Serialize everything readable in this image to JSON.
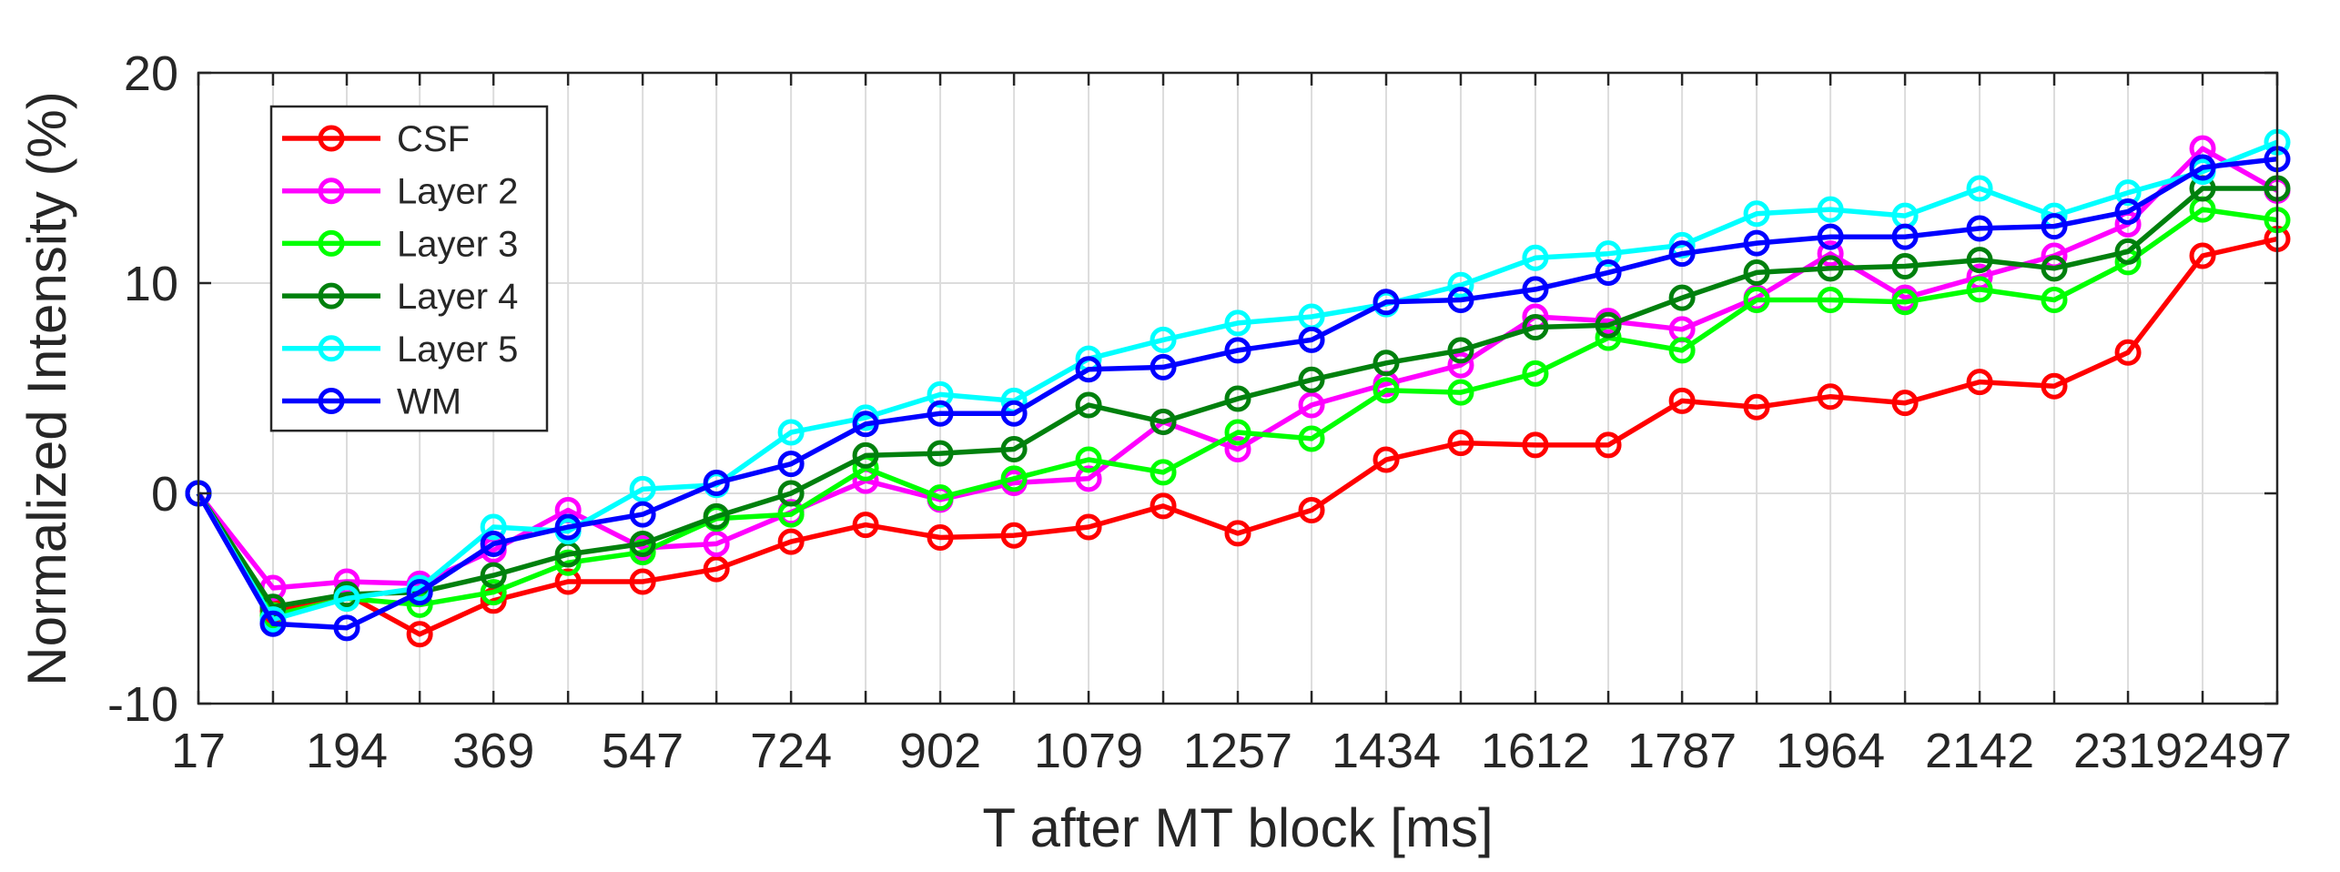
{
  "chart_data": {
    "type": "line",
    "title": "",
    "xlabel": "T after MT block [ms]",
    "ylabel": "Normalized Intensity (%)",
    "xlim": [
      17,
      2497
    ],
    "ylim": [
      -10,
      20
    ],
    "xticks": [
      17,
      194,
      369,
      547,
      724,
      902,
      1079,
      1257,
      1434,
      1612,
      1787,
      1964,
      2142,
      2319,
      2497
    ],
    "yticks": [
      -10,
      0,
      10,
      20
    ],
    "grid": true,
    "legend_position": "top-left",
    "x": [
      17,
      106,
      194,
      281,
      369,
      458,
      547,
      635,
      724,
      813,
      902,
      990,
      1079,
      1168,
      1257,
      1345,
      1434,
      1523,
      1612,
      1699,
      1787,
      1876,
      1964,
      2053,
      2142,
      2231,
      2319,
      2408,
      2497
    ],
    "series": [
      {
        "name": "CSF",
        "color": "#ff0000",
        "values": [
          0,
          -5.6,
          -4.8,
          -6.7,
          -5.1,
          -4.2,
          -4.2,
          -3.6,
          -2.3,
          -1.5,
          -2.1,
          -2.0,
          -1.6,
          -0.6,
          -1.9,
          -0.8,
          1.6,
          2.4,
          2.3,
          2.3,
          4.4,
          4.1,
          4.6,
          4.3,
          5.3,
          5.1,
          6.7,
          11.3,
          12.1
        ]
      },
      {
        "name": "Layer 2",
        "color": "#ff00ff",
        "values": [
          0,
          -4.5,
          -4.2,
          -4.3,
          -2.7,
          -0.8,
          -2.6,
          -2.4,
          -0.9,
          0.6,
          -0.3,
          0.5,
          0.7,
          3.4,
          2.1,
          4.2,
          5.2,
          6.1,
          8.4,
          8.2,
          7.8,
          9.3,
          11.4,
          9.3,
          10.3,
          11.3,
          12.8,
          16.4,
          14.4
        ]
      },
      {
        "name": "Layer 3",
        "color": "#00ff00",
        "values": [
          0,
          -5.8,
          -5.0,
          -5.3,
          -4.7,
          -3.3,
          -2.8,
          -1.2,
          -1.0,
          1.2,
          -0.2,
          0.7,
          1.6,
          1.0,
          2.9,
          2.6,
          4.9,
          4.8,
          5.7,
          7.4,
          6.8,
          9.2,
          9.2,
          9.1,
          9.7,
          9.2,
          11.0,
          13.5,
          13.0
        ]
      },
      {
        "name": "Layer 4",
        "color": "#00800d",
        "values": [
          0,
          -5.4,
          -4.8,
          -4.7,
          -3.9,
          -2.9,
          -2.4,
          -1.1,
          0.0,
          1.8,
          1.9,
          2.1,
          4.2,
          3.4,
          4.5,
          5.4,
          6.2,
          6.8,
          7.9,
          8.0,
          9.3,
          10.5,
          10.7,
          10.8,
          11.1,
          10.7,
          11.5,
          14.5,
          14.5
        ]
      },
      {
        "name": "Layer 5",
        "color": "#00ffff",
        "values": [
          0,
          -6.0,
          -5.0,
          -4.5,
          -1.6,
          -1.8,
          0.2,
          0.4,
          2.9,
          3.6,
          4.7,
          4.4,
          6.4,
          7.3,
          8.1,
          8.4,
          9.0,
          9.9,
          11.2,
          11.4,
          11.8,
          13.3,
          13.5,
          13.2,
          14.5,
          13.2,
          14.3,
          15.3,
          16.7
        ]
      },
      {
        "name": "WM",
        "color": "#0000ff",
        "values": [
          0,
          -6.2,
          -6.4,
          -4.7,
          -2.4,
          -1.6,
          -1.0,
          0.5,
          1.4,
          3.3,
          3.8,
          3.8,
          5.9,
          6.0,
          6.8,
          7.3,
          9.1,
          9.2,
          9.7,
          10.5,
          11.4,
          11.9,
          12.2,
          12.2,
          12.6,
          12.7,
          13.4,
          15.5,
          15.9
        ]
      }
    ]
  }
}
